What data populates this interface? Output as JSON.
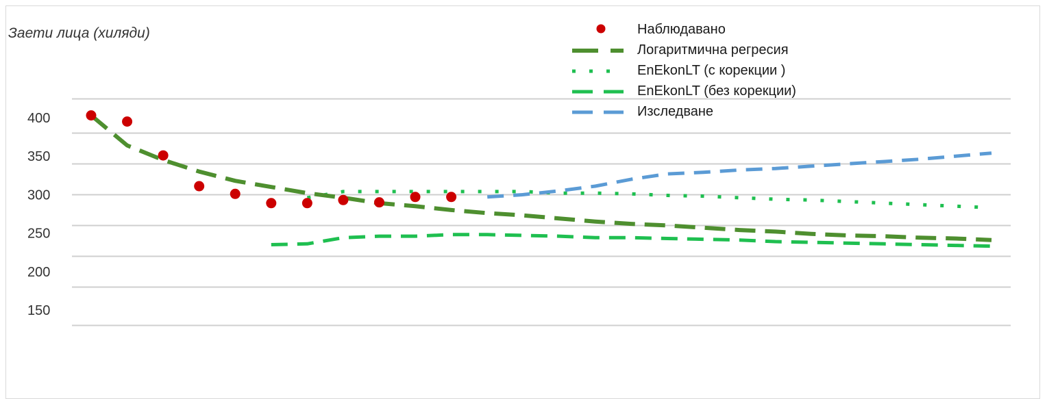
{
  "chart_data": {
    "type": "line",
    "ylabel": "Заети лица  (хиляди)",
    "y_ticks": [
      "150",
      "200",
      "250",
      "300",
      "350",
      "400"
    ],
    "ylim": [
      130,
      440
    ],
    "grid": true,
    "legend_position": "top-right",
    "x_count": 26,
    "series": [
      {
        "name": "Наблюдавано",
        "style": "markers",
        "color": "#cc0000",
        "points": [
          [
            0,
            403
          ],
          [
            1,
            395
          ],
          [
            2,
            351
          ],
          [
            3,
            311
          ],
          [
            4,
            301
          ],
          [
            5,
            289
          ],
          [
            6,
            289
          ],
          [
            7,
            293
          ],
          [
            8,
            290
          ],
          [
            9,
            297
          ],
          [
            10,
            297
          ]
        ]
      },
      {
        "name": "Логаритмична регресия",
        "style": "dash-long",
        "color": "#4e8f2f",
        "points": [
          [
            0,
            403
          ],
          [
            1,
            364
          ],
          [
            2,
            345
          ],
          [
            3,
            330
          ],
          [
            4,
            318
          ],
          [
            5,
            310
          ],
          [
            6,
            302
          ],
          [
            7,
            296
          ],
          [
            8,
            289
          ],
          [
            9,
            285
          ],
          [
            10,
            280
          ],
          [
            11,
            276
          ],
          [
            12,
            273
          ],
          [
            13,
            269
          ],
          [
            14,
            265
          ],
          [
            15,
            262
          ],
          [
            16,
            260
          ],
          [
            17,
            257
          ],
          [
            18,
            254
          ],
          [
            19,
            252
          ],
          [
            20,
            249
          ],
          [
            21,
            247
          ],
          [
            22,
            246
          ],
          [
            23,
            244
          ],
          [
            24,
            243
          ],
          [
            25,
            241
          ]
        ]
      },
      {
        "name": "EnEkonLT  (с корекции )",
        "style": "dotted",
        "color": "#1fbf50",
        "points": [
          [
            6,
            296
          ],
          [
            7,
            304
          ],
          [
            8,
            304
          ],
          [
            9,
            304
          ],
          [
            10,
            304
          ],
          [
            11,
            304
          ],
          [
            12,
            304
          ],
          [
            13,
            302
          ],
          [
            14,
            302
          ],
          [
            15,
            301
          ],
          [
            16,
            299
          ],
          [
            17,
            298
          ],
          [
            18,
            296
          ],
          [
            19,
            294
          ],
          [
            20,
            293
          ],
          [
            21,
            291
          ],
          [
            22,
            289
          ],
          [
            23,
            287
          ],
          [
            24,
            285
          ],
          [
            25,
            283
          ]
        ]
      },
      {
        "name": "EnEkonLT (без корекции)",
        "style": "dash-mid",
        "color": "#1fbf50",
        "points": [
          [
            5,
            235
          ],
          [
            6,
            236
          ],
          [
            7,
            244
          ],
          [
            8,
            246
          ],
          [
            9,
            246
          ],
          [
            10,
            248
          ],
          [
            11,
            248
          ],
          [
            12,
            247
          ],
          [
            13,
            246
          ],
          [
            14,
            244
          ],
          [
            15,
            244
          ],
          [
            16,
            243
          ],
          [
            17,
            242
          ],
          [
            18,
            241
          ],
          [
            19,
            239
          ],
          [
            20,
            238
          ],
          [
            21,
            237
          ],
          [
            22,
            236
          ],
          [
            23,
            235
          ],
          [
            24,
            234
          ],
          [
            25,
            233
          ]
        ]
      },
      {
        "name": "Изследване",
        "style": "dash-mid",
        "color": "#5b9bd5",
        "points": [
          [
            11,
            297
          ],
          [
            12,
            300
          ],
          [
            13,
            305
          ],
          [
            14,
            311
          ],
          [
            15,
            320
          ],
          [
            16,
            327
          ],
          [
            17,
            329
          ],
          [
            18,
            332
          ],
          [
            19,
            334
          ],
          [
            20,
            337
          ],
          [
            21,
            340
          ],
          [
            22,
            343
          ],
          [
            23,
            346
          ],
          [
            24,
            350
          ],
          [
            25,
            354
          ]
        ]
      }
    ]
  }
}
